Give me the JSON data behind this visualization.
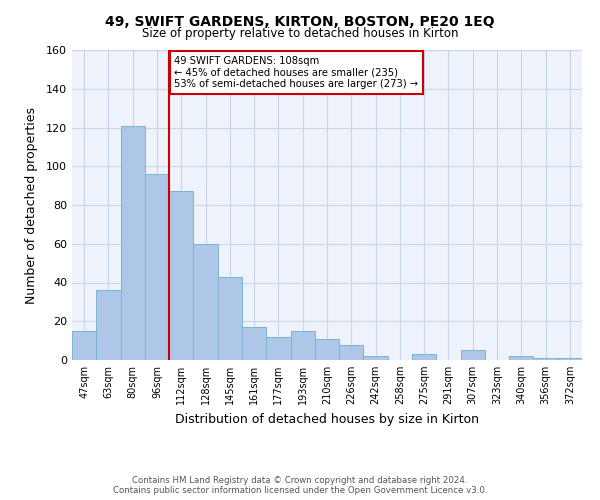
{
  "title": "49, SWIFT GARDENS, KIRTON, BOSTON, PE20 1EQ",
  "subtitle": "Size of property relative to detached houses in Kirton",
  "xlabel": "Distribution of detached houses by size in Kirton",
  "ylabel": "Number of detached properties",
  "footer_line1": "Contains HM Land Registry data © Crown copyright and database right 2024.",
  "footer_line2": "Contains public sector information licensed under the Open Government Licence v3.0.",
  "bar_labels": [
    "47sqm",
    "63sqm",
    "80sqm",
    "96sqm",
    "112sqm",
    "128sqm",
    "145sqm",
    "161sqm",
    "177sqm",
    "193sqm",
    "210sqm",
    "226sqm",
    "242sqm",
    "258sqm",
    "275sqm",
    "291sqm",
    "307sqm",
    "323sqm",
    "340sqm",
    "356sqm",
    "372sqm"
  ],
  "bar_values": [
    15,
    36,
    121,
    96,
    87,
    60,
    43,
    17,
    12,
    15,
    11,
    8,
    2,
    0,
    3,
    0,
    5,
    0,
    2,
    1,
    1
  ],
  "bar_color": "#aec6e8",
  "bar_edge_color": "#7ab4d4",
  "vline_x": 4,
  "vline_color": "#cc0000",
  "annotation_title": "49 SWIFT GARDENS: 108sqm",
  "annotation_line2": "← 45% of detached houses are smaller (235)",
  "annotation_line3": "53% of semi-detached houses are larger (273) →",
  "annotation_box_edge": "#cc0000",
  "ylim": [
    0,
    160
  ],
  "yticks": [
    0,
    20,
    40,
    60,
    80,
    100,
    120,
    140,
    160
  ],
  "grid_color": "#c8d4e8",
  "bg_color": "#eef2fa"
}
